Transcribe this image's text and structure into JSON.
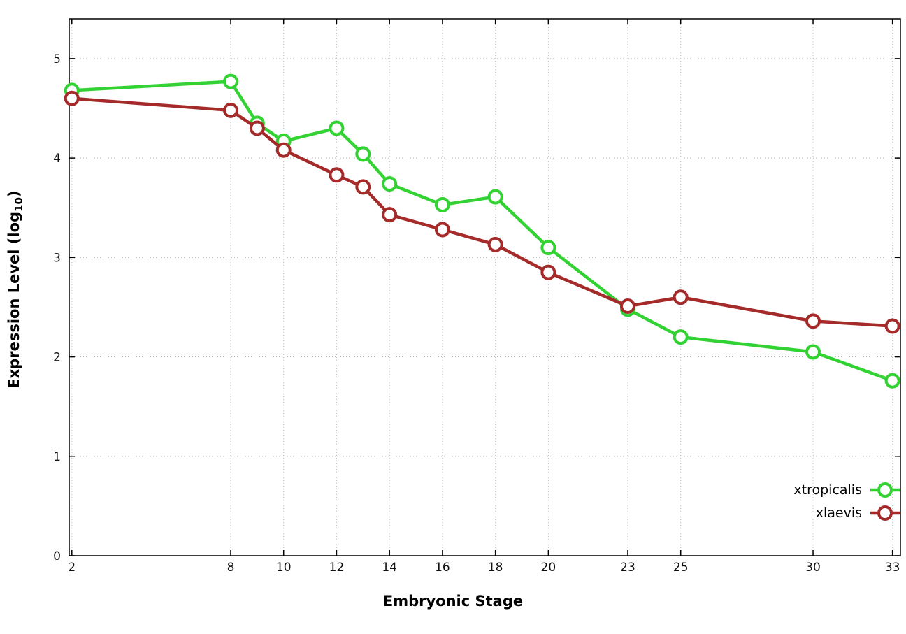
{
  "chart_data": {
    "type": "line",
    "title": "",
    "xlabel": "Embryonic Stage",
    "ylabel_parts": {
      "pre": "Expression Level (log",
      "sub": "10",
      "post": ")"
    },
    "x": [
      2,
      8,
      9,
      10,
      12,
      13,
      14,
      16,
      18,
      20,
      23,
      25,
      30,
      33
    ],
    "xticks": [
      2,
      8,
      10,
      12,
      14,
      16,
      18,
      20,
      23,
      25,
      30,
      33
    ],
    "yticks": [
      0,
      1,
      2,
      3,
      4,
      5
    ],
    "xlim": [
      1.9,
      33.3
    ],
    "ylim": [
      0,
      5.4
    ],
    "grid": true,
    "legend_position": "bottom-right",
    "series": [
      {
        "name": "xtropicalis",
        "color": "#32d232",
        "values": [
          4.68,
          4.77,
          4.35,
          4.17,
          4.3,
          4.04,
          3.74,
          3.53,
          3.61,
          3.1,
          2.48,
          2.2,
          2.05,
          1.76
        ]
      },
      {
        "name": "xlaevis",
        "color": "#a52a2a",
        "values": [
          4.6,
          4.48,
          4.3,
          4.08,
          3.83,
          3.71,
          3.43,
          3.28,
          3.13,
          2.85,
          2.51,
          2.6,
          2.36,
          2.31
        ]
      }
    ],
    "colors": {
      "grid": "#b8b8b8",
      "border": "#000000",
      "tick_label": "#111111"
    }
  }
}
